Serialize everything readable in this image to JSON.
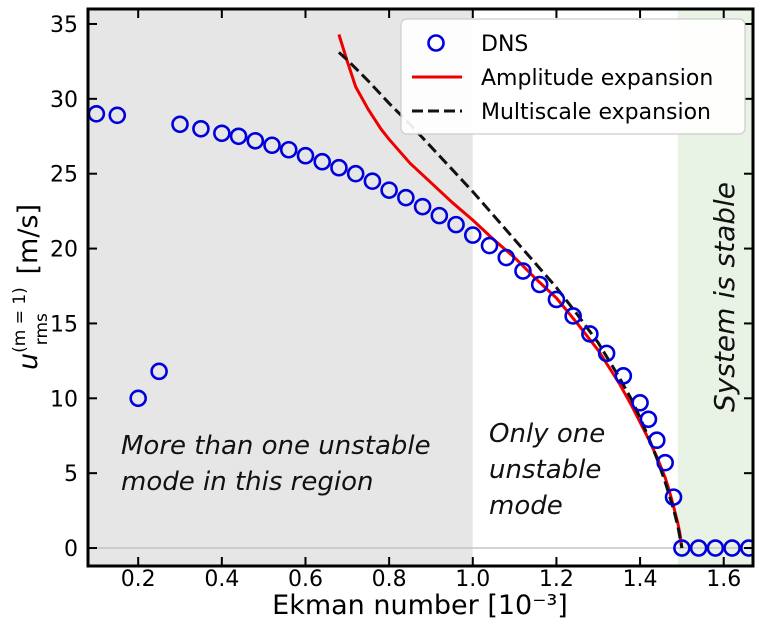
{
  "chart_data": {
    "type": "scatter",
    "xlabel": "Ekman number [10⁻³]",
    "ylabel_main": "u",
    "ylabel_sup": "(m = 1)",
    "ylabel_sub": "rms",
    "ylabel_unit": " [m/s]",
    "xlim": [
      0.08,
      1.67
    ],
    "ylim": [
      -1.2,
      36
    ],
    "xticks": [
      0.2,
      0.4,
      0.6,
      0.8,
      1.0,
      1.2,
      1.4,
      1.6
    ],
    "xtick_labels": [
      "0.2",
      "0.4",
      "0.6",
      "0.8",
      "1.0",
      "1.2",
      "1.4",
      "1.6"
    ],
    "yticks": [
      0,
      5,
      10,
      15,
      20,
      25,
      30,
      35
    ],
    "ytick_labels": [
      "0",
      "5",
      "10",
      "15",
      "20",
      "25",
      "30",
      "35"
    ],
    "regions": [
      {
        "x0": 0.08,
        "x1": 1.0,
        "color": "#e6e6e6"
      },
      {
        "x0": 1.0,
        "x1": 1.49,
        "color": "#ffffff"
      },
      {
        "x0": 1.49,
        "x1": 1.67,
        "color": "#e8f2e5"
      }
    ],
    "zero_line": {
      "y": 0,
      "color": "#bbbbbb"
    },
    "annotations": {
      "region1": [
        "More than one unstable",
        "mode in this region"
      ],
      "region2": [
        "Only one",
        "unstable",
        "mode"
      ],
      "region3": "System is stable"
    },
    "series": [
      {
        "name": "DNS",
        "kind": "markers",
        "color": "#0000dd",
        "x": [
          0.1,
          0.15,
          0.2,
          0.25,
          0.3,
          0.35,
          0.4,
          0.44,
          0.48,
          0.52,
          0.56,
          0.6,
          0.64,
          0.68,
          0.72,
          0.76,
          0.8,
          0.84,
          0.88,
          0.92,
          0.96,
          1.0,
          1.04,
          1.08,
          1.12,
          1.16,
          1.2,
          1.24,
          1.28,
          1.32,
          1.36,
          1.4,
          1.42,
          1.44,
          1.46,
          1.48,
          1.5,
          1.54,
          1.58,
          1.62,
          1.66
        ],
        "y": [
          29.0,
          28.9,
          10.0,
          11.8,
          28.3,
          28.0,
          27.7,
          27.5,
          27.2,
          26.9,
          26.6,
          26.2,
          25.8,
          25.4,
          25.0,
          24.5,
          23.9,
          23.4,
          22.8,
          22.2,
          21.6,
          20.9,
          20.2,
          19.4,
          18.5,
          17.6,
          16.6,
          15.5,
          14.3,
          13.0,
          11.5,
          9.7,
          8.6,
          7.2,
          5.7,
          3.4,
          0.0,
          0.0,
          0.0,
          0.0,
          0.0
        ]
      },
      {
        "name": "Amplitude expansion",
        "kind": "line",
        "color": "#ee0000",
        "dash": "solid",
        "x": [
          0.68,
          0.7,
          0.72,
          0.75,
          0.78,
          0.8,
          0.85,
          0.9,
          0.95,
          1.0,
          1.05,
          1.1,
          1.15,
          1.2,
          1.25,
          1.3,
          1.35,
          1.38,
          1.4,
          1.42,
          1.44,
          1.46,
          1.47,
          1.48,
          1.49,
          1.495,
          1.5
        ],
        "y": [
          34.3,
          32.5,
          30.8,
          29.3,
          28.0,
          27.3,
          25.7,
          24.4,
          23.1,
          21.9,
          20.6,
          19.4,
          18.0,
          16.7,
          15.0,
          13.2,
          11.0,
          9.5,
          8.4,
          7.3,
          6.1,
          4.7,
          3.8,
          2.8,
          1.7,
          1.0,
          0.0
        ]
      },
      {
        "name": "Multiscale expansion",
        "kind": "line",
        "color": "#111111",
        "dash": "dashed",
        "x": [
          0.68,
          0.7,
          0.75,
          0.8,
          0.85,
          0.9,
          0.95,
          1.0,
          1.05,
          1.1,
          1.15,
          1.2,
          1.25,
          1.3,
          1.35,
          1.38,
          1.4,
          1.42,
          1.44,
          1.46,
          1.48,
          1.49,
          1.5
        ],
        "y": [
          33.1,
          32.6,
          31.2,
          29.7,
          28.3,
          26.8,
          25.3,
          23.8,
          22.2,
          20.6,
          19.0,
          17.4,
          15.6,
          13.7,
          11.4,
          9.9,
          8.7,
          7.4,
          6.0,
          4.4,
          2.6,
          1.5,
          0.0
        ]
      }
    ],
    "legend": {
      "placement": "top-right",
      "entries": [
        "DNS",
        "Amplitude expansion",
        "Multiscale expansion"
      ]
    }
  }
}
